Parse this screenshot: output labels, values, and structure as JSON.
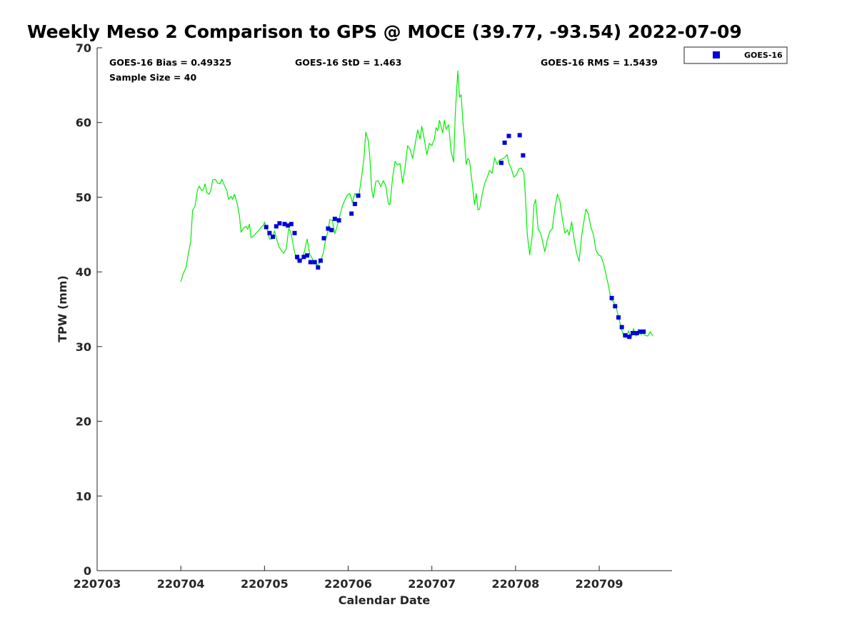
{
  "colors": {
    "gps_line": "#00ee00",
    "goes_marker": "#0000dd",
    "axis": "#262626"
  },
  "chart_data": {
    "type": "line",
    "title": "Weekly Meso 2 Comparison to GPS @ MOCE (39.77, -93.54) 2022-07-09",
    "xlabel": "Calendar Date",
    "ylabel": "TPW (mm)",
    "xlim": [
      0,
      6.87
    ],
    "ylim": [
      0,
      70
    ],
    "yticks": [
      "0",
      "10",
      "20",
      "30",
      "40",
      "50",
      "60",
      "70"
    ],
    "xticks": [
      "220703",
      "220704",
      "220705",
      "220706",
      "220707",
      "220708",
      "220709"
    ],
    "stats": {
      "bias": "GOES-16 Bias = 0.49325",
      "std": "GOES-16 StD = 1.463",
      "rms": "GOES-16 RMS = 1.5439",
      "sample": "Sample Size = 40"
    },
    "legend": {
      "label": "GOES-16",
      "position": "top-right"
    },
    "series": [
      {
        "name": "GPS",
        "style": "line",
        "points": [
          [
            1.0,
            38.7
          ],
          [
            1.03,
            39.8
          ],
          [
            1.06,
            40.5
          ],
          [
            1.09,
            42.4
          ],
          [
            1.12,
            44.2
          ],
          [
            1.14,
            48.2
          ],
          [
            1.17,
            48.8
          ],
          [
            1.2,
            51.0
          ],
          [
            1.22,
            51.5
          ],
          [
            1.25,
            50.9
          ],
          [
            1.27,
            51.0
          ],
          [
            1.29,
            51.8
          ],
          [
            1.31,
            50.6
          ],
          [
            1.34,
            50.4
          ],
          [
            1.36,
            51.0
          ],
          [
            1.38,
            52.3
          ],
          [
            1.41,
            52.4
          ],
          [
            1.44,
            51.9
          ],
          [
            1.47,
            51.8
          ],
          [
            1.49,
            52.4
          ],
          [
            1.52,
            51.6
          ],
          [
            1.55,
            50.9
          ],
          [
            1.57,
            49.7
          ],
          [
            1.6,
            50.1
          ],
          [
            1.62,
            49.7
          ],
          [
            1.64,
            50.4
          ],
          [
            1.67,
            49.3
          ],
          [
            1.7,
            47.6
          ],
          [
            1.72,
            45.3
          ],
          [
            1.75,
            45.9
          ],
          [
            1.78,
            46.1
          ],
          [
            1.8,
            45.7
          ],
          [
            1.82,
            46.4
          ],
          [
            1.84,
            44.6
          ],
          [
            1.87,
            44.8
          ],
          [
            1.9,
            45.2
          ],
          [
            1.93,
            45.5
          ],
          [
            1.96,
            46.0
          ],
          [
            1.99,
            46.3
          ],
          [
            2.0,
            46.7
          ],
          [
            2.02,
            45.9
          ],
          [
            2.04,
            45.5
          ],
          [
            2.06,
            44.4
          ],
          [
            2.09,
            44.4
          ],
          [
            2.12,
            45.5
          ],
          [
            2.14,
            44.6
          ],
          [
            2.17,
            43.4
          ],
          [
            2.2,
            42.9
          ],
          [
            2.23,
            42.5
          ],
          [
            2.26,
            43.1
          ],
          [
            2.29,
            45.8
          ],
          [
            2.31,
            45.4
          ],
          [
            2.33,
            44.5
          ],
          [
            2.35,
            43.1
          ],
          [
            2.38,
            41.7
          ],
          [
            2.41,
            41.4
          ],
          [
            2.44,
            41.5
          ],
          [
            2.46,
            42.0
          ],
          [
            2.48,
            42.9
          ],
          [
            2.51,
            44.4
          ],
          [
            2.54,
            42.4
          ],
          [
            2.57,
            41.8
          ],
          [
            2.6,
            41.1
          ],
          [
            2.63,
            40.9
          ],
          [
            2.66,
            41.2
          ],
          [
            2.7,
            42.4
          ],
          [
            2.73,
            44.3
          ],
          [
            2.76,
            45.5
          ],
          [
            2.78,
            47.0
          ],
          [
            2.81,
            46.9
          ],
          [
            2.84,
            45.1
          ],
          [
            2.87,
            46.2
          ],
          [
            2.9,
            47.5
          ],
          [
            2.93,
            48.8
          ],
          [
            2.96,
            49.6
          ],
          [
            2.99,
            50.3
          ],
          [
            3.02,
            50.5
          ],
          [
            3.05,
            49.3
          ],
          [
            3.08,
            50.5
          ],
          [
            3.1,
            50.2
          ],
          [
            3.13,
            50.4
          ],
          [
            3.16,
            52.7
          ],
          [
            3.19,
            55.4
          ],
          [
            3.21,
            58.7
          ],
          [
            3.24,
            57.6
          ],
          [
            3.26,
            55.2
          ],
          [
            3.28,
            51.2
          ],
          [
            3.3,
            49.9
          ],
          [
            3.33,
            52.1
          ],
          [
            3.36,
            52.2
          ],
          [
            3.39,
            51.4
          ],
          [
            3.42,
            52.2
          ],
          [
            3.45,
            51.5
          ],
          [
            3.48,
            49.1
          ],
          [
            3.5,
            49.0
          ],
          [
            3.53,
            52.5
          ],
          [
            3.56,
            54.8
          ],
          [
            3.59,
            54.3
          ],
          [
            3.62,
            54.5
          ],
          [
            3.65,
            51.9
          ],
          [
            3.68,
            54.0
          ],
          [
            3.71,
            56.9
          ],
          [
            3.74,
            56.4
          ],
          [
            3.77,
            55.2
          ],
          [
            3.8,
            57.1
          ],
          [
            3.83,
            59.0
          ],
          [
            3.86,
            57.8
          ],
          [
            3.88,
            59.5
          ],
          [
            3.91,
            57.7
          ],
          [
            3.94,
            55.7
          ],
          [
            3.97,
            57.2
          ],
          [
            4.0,
            56.9
          ],
          [
            4.03,
            57.8
          ],
          [
            4.05,
            59.3
          ],
          [
            4.07,
            58.9
          ],
          [
            4.09,
            60.3
          ],
          [
            4.11,
            59.5
          ],
          [
            4.13,
            58.6
          ],
          [
            4.15,
            60.3
          ],
          [
            4.17,
            59.1
          ],
          [
            4.2,
            59.7
          ],
          [
            4.23,
            56.1
          ],
          [
            4.26,
            54.7
          ],
          [
            4.28,
            61.2
          ],
          [
            4.31,
            66.9
          ],
          [
            4.33,
            63.4
          ],
          [
            4.35,
            63.7
          ],
          [
            4.37,
            60.2
          ],
          [
            4.39,
            57.8
          ],
          [
            4.41,
            54.4
          ],
          [
            4.43,
            55.2
          ],
          [
            4.45,
            54.9
          ],
          [
            4.48,
            52.1
          ],
          [
            4.51,
            49.0
          ],
          [
            4.53,
            50.5
          ],
          [
            4.55,
            48.3
          ],
          [
            4.57,
            48.4
          ],
          [
            4.6,
            50.3
          ],
          [
            4.63,
            51.8
          ],
          [
            4.66,
            52.6
          ],
          [
            4.69,
            53.6
          ],
          [
            4.72,
            53.2
          ],
          [
            4.75,
            55.3
          ],
          [
            4.78,
            54.4
          ],
          [
            4.81,
            55.0
          ],
          [
            4.84,
            55.1
          ],
          [
            4.87,
            55.3
          ],
          [
            4.9,
            55.7
          ],
          [
            4.92,
            54.6
          ],
          [
            4.95,
            53.8
          ],
          [
            4.98,
            52.7
          ],
          [
            5.01,
            53.0
          ],
          [
            5.04,
            53.8
          ],
          [
            5.07,
            53.9
          ],
          [
            5.1,
            53.2
          ],
          [
            5.12,
            49.8
          ],
          [
            5.14,
            45.0
          ],
          [
            5.17,
            42.3
          ],
          [
            5.2,
            44.9
          ],
          [
            5.22,
            49.0
          ],
          [
            5.24,
            49.7
          ],
          [
            5.27,
            45.7
          ],
          [
            5.3,
            45.2
          ],
          [
            5.32,
            44.2
          ],
          [
            5.35,
            42.7
          ],
          [
            5.38,
            44.3
          ],
          [
            5.41,
            45.4
          ],
          [
            5.44,
            45.8
          ],
          [
            5.47,
            48.6
          ],
          [
            5.5,
            50.4
          ],
          [
            5.53,
            49.5
          ],
          [
            5.56,
            47.0
          ],
          [
            5.59,
            45.2
          ],
          [
            5.62,
            45.6
          ],
          [
            5.64,
            44.9
          ],
          [
            5.67,
            46.7
          ],
          [
            5.7,
            44.4
          ],
          [
            5.73,
            42.5
          ],
          [
            5.76,
            41.4
          ],
          [
            5.79,
            44.8
          ],
          [
            5.82,
            47.0
          ],
          [
            5.84,
            48.4
          ],
          [
            5.87,
            47.8
          ],
          [
            5.9,
            46.0
          ],
          [
            5.93,
            45.0
          ],
          [
            5.96,
            42.9
          ],
          [
            5.99,
            42.3
          ],
          [
            6.02,
            42.1
          ],
          [
            6.05,
            41.2
          ],
          [
            6.08,
            39.7
          ],
          [
            6.11,
            38.2
          ],
          [
            6.14,
            36.3
          ],
          [
            6.17,
            36.0
          ],
          [
            6.2,
            35.3
          ],
          [
            6.23,
            34.0
          ],
          [
            6.26,
            32.6
          ],
          [
            6.29,
            31.5
          ],
          [
            6.32,
            31.2
          ],
          [
            6.35,
            32.1
          ],
          [
            6.38,
            31.1
          ],
          [
            6.41,
            32.4
          ],
          [
            6.44,
            31.4
          ],
          [
            6.47,
            32.3
          ],
          [
            6.5,
            31.6
          ],
          [
            6.52,
            31.8
          ],
          [
            6.55,
            31.5
          ],
          [
            6.58,
            31.4
          ],
          [
            6.61,
            32.0
          ],
          [
            6.64,
            31.4
          ]
        ]
      },
      {
        "name": "GOES-16",
        "style": "marker",
        "points": [
          [
            2.02,
            46.0
          ],
          [
            2.06,
            45.2
          ],
          [
            2.1,
            44.7
          ],
          [
            2.14,
            46.1
          ],
          [
            2.18,
            46.5
          ],
          [
            2.24,
            46.4
          ],
          [
            2.28,
            46.2
          ],
          [
            2.32,
            46.4
          ],
          [
            2.36,
            45.2
          ],
          [
            2.39,
            42.0
          ],
          [
            2.42,
            41.5
          ],
          [
            2.47,
            42.0
          ],
          [
            2.51,
            42.2
          ],
          [
            2.55,
            41.3
          ],
          [
            2.6,
            41.3
          ],
          [
            2.64,
            40.6
          ],
          [
            2.67,
            41.5
          ],
          [
            2.71,
            44.5
          ],
          [
            2.76,
            45.8
          ],
          [
            2.8,
            45.6
          ],
          [
            2.84,
            47.1
          ],
          [
            2.89,
            46.9
          ],
          [
            3.04,
            47.8
          ],
          [
            3.08,
            49.1
          ],
          [
            3.12,
            50.2
          ],
          [
            4.83,
            54.6
          ],
          [
            4.87,
            57.3
          ],
          [
            4.92,
            58.2
          ],
          [
            5.05,
            58.3
          ],
          [
            5.09,
            55.6
          ],
          [
            6.15,
            36.5
          ],
          [
            6.19,
            35.4
          ],
          [
            6.23,
            33.9
          ],
          [
            6.27,
            32.6
          ],
          [
            6.31,
            31.5
          ],
          [
            6.36,
            31.3
          ],
          [
            6.4,
            31.8
          ],
          [
            6.45,
            31.8
          ],
          [
            6.49,
            32.0
          ],
          [
            6.53,
            32.0
          ]
        ]
      }
    ]
  }
}
